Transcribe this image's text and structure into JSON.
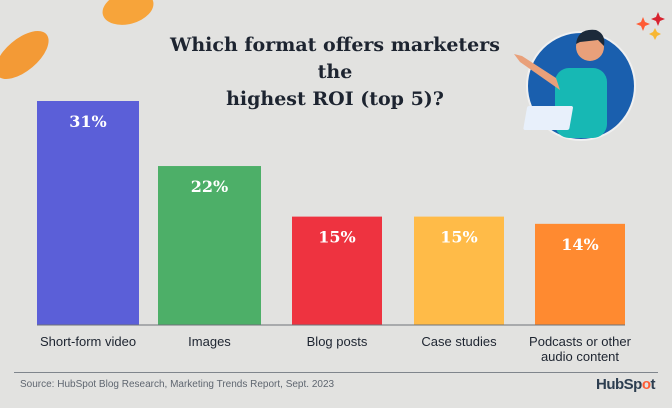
{
  "chart_data": {
    "type": "bar",
    "title": "Which format offers marketers the highest ROI (top 5)?",
    "title_lines": [
      "Which format offers marketers the",
      "highest ROI (top 5)?"
    ],
    "categories": [
      "Short-form video",
      "Images",
      "Blog posts",
      "Case studies",
      "Podcasts or other audio content"
    ],
    "category_lines": [
      [
        "Short-form video"
      ],
      [
        "Images"
      ],
      [
        "Blog posts"
      ],
      [
        "Case studies"
      ],
      [
        "Podcasts or other",
        "audio content"
      ]
    ],
    "values": [
      31,
      22,
      15,
      15,
      14
    ],
    "value_labels": [
      "31%",
      "22%",
      "15%",
      "15%",
      "14%"
    ],
    "colors": [
      "#5b5fd8",
      "#4daf68",
      "#ee3340",
      "#ffbb48",
      "#ff8a30"
    ],
    "xlabel": "",
    "ylabel": "",
    "ylim": [
      0,
      31
    ],
    "grid": false
  },
  "footer": {
    "source": "Source: HubSpot Blog Research, Marketing Trends Report, Sept. 2023",
    "logo_text": "HubSpot"
  }
}
